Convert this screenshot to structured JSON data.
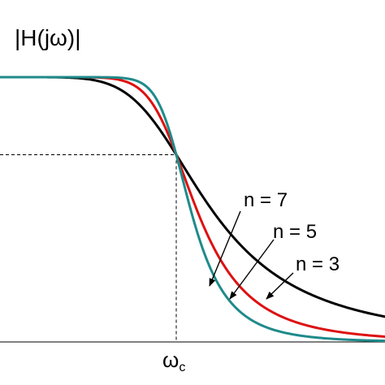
{
  "chart_data": {
    "type": "line",
    "title": "",
    "ylabel": "|H(jω)|",
    "xlabel": "",
    "x_tick_labels": [
      "ωc"
    ],
    "xlim": [
      0,
      2.2
    ],
    "ylim": [
      0,
      1
    ],
    "cutoff_x": 1.0,
    "cutoff_y": 0.7071,
    "grid": false,
    "legend": "none",
    "series": [
      {
        "name": "n = 3",
        "order": 3,
        "color": "#000000",
        "x": [
          0,
          0.25,
          0.5,
          0.6,
          0.7,
          0.8,
          0.9,
          1.0,
          1.1,
          1.2,
          1.3,
          1.4,
          1.5,
          1.6,
          1.8,
          2.0,
          2.2
        ],
        "y": [
          1.0,
          1.0,
          0.99,
          0.98,
          0.95,
          0.89,
          0.81,
          0.71,
          0.6,
          0.5,
          0.41,
          0.34,
          0.28,
          0.24,
          0.17,
          0.12,
          0.09
        ]
      },
      {
        "name": "n = 5",
        "order": 5,
        "color": "#dd1111",
        "x": [
          0,
          0.25,
          0.5,
          0.6,
          0.7,
          0.8,
          0.9,
          1.0,
          1.1,
          1.2,
          1.3,
          1.4,
          1.5,
          1.6,
          1.8,
          2.0,
          2.2
        ],
        "y": [
          1.0,
          1.0,
          1.0,
          1.0,
          0.99,
          0.96,
          0.87,
          0.71,
          0.53,
          0.37,
          0.26,
          0.18,
          0.13,
          0.09,
          0.05,
          0.03,
          0.02
        ]
      },
      {
        "name": "n = 7",
        "order": 7,
        "color": "#1f8a8a",
        "x": [
          0,
          0.25,
          0.5,
          0.6,
          0.7,
          0.8,
          0.9,
          1.0,
          1.1,
          1.2,
          1.3,
          1.4,
          1.5,
          1.6,
          1.8,
          2.0,
          2.2
        ],
        "y": [
          1.0,
          1.0,
          1.0,
          1.0,
          1.0,
          0.99,
          0.92,
          0.71,
          0.46,
          0.28,
          0.16,
          0.09,
          0.06,
          0.04,
          0.02,
          0.01,
          0.0
        ]
      }
    ]
  }
}
